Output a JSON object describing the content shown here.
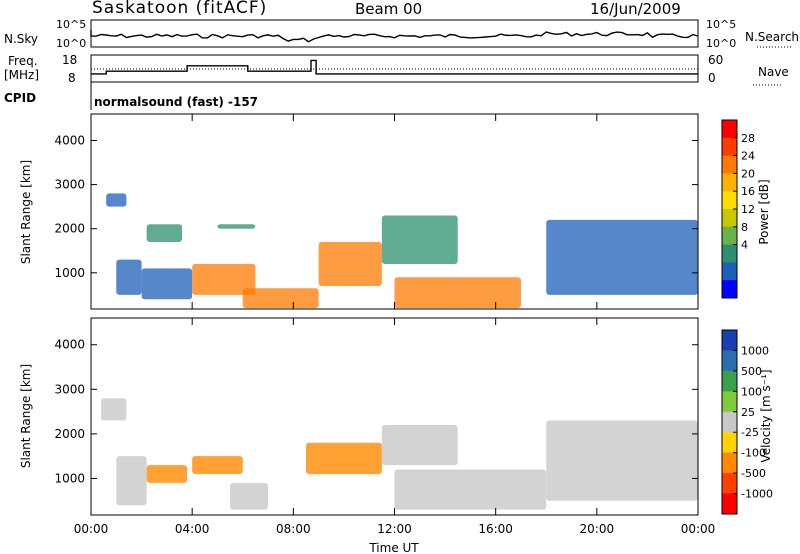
{
  "header": {
    "station": "Saskatoon (fitACF)",
    "beam": "Beam 00",
    "date": "16/Jun/2009"
  },
  "noise_panel": {
    "left_label": "N.Sky",
    "right_label": "N.Search",
    "left_ticks": [
      "10^5",
      "10^0"
    ],
    "right_ticks": [
      "10^5",
      "10^0"
    ]
  },
  "freq_panel": {
    "left_label_1": "Freq.",
    "left_label_2": "[MHz]",
    "right_label": "Nave",
    "left_ticks": [
      "18",
      "8"
    ],
    "right_ticks": [
      "60",
      "0"
    ]
  },
  "cpid_panel": {
    "label": "CPID",
    "text": "normalsound (fast) -157"
  },
  "power_panel": {
    "ylabel": "Slant Range [km]",
    "yticks": [
      "1000",
      "2000",
      "3000",
      "4000"
    ],
    "colorbar_label": "Power [dB]",
    "colorbar_ticks": [
      "28",
      "24",
      "20",
      "16",
      "12",
      "8",
      "4"
    ],
    "colorbar_colors": [
      "#ff0000",
      "#ff3c00",
      "#ff7a00",
      "#ffb300",
      "#ffdc00",
      "#c8c800",
      "#66b44a",
      "#2c8f6e",
      "#1d5fb8",
      "#0000ff"
    ]
  },
  "velocity_panel": {
    "ylabel": "Slant Range [km]",
    "yticks": [
      "1000",
      "2000",
      "3000",
      "4000"
    ],
    "colorbar_label": "Velocity [m s⁻¹]",
    "colorbar_ticks": [
      "1000",
      "500",
      "100",
      "25",
      "-25",
      "-100",
      "-500",
      "-1000"
    ],
    "colorbar_colors": [
      "#1a3fb0",
      "#2c6fb0",
      "#3aa04a",
      "#7fcc3a",
      "#c8c8c8",
      "#ffd200",
      "#ff8a00",
      "#ff4000",
      "#ff0000"
    ]
  },
  "x_axis": {
    "ticks": [
      "00:00",
      "04:00",
      "08:00",
      "12:00",
      "16:00",
      "20:00",
      "00:00"
    ],
    "label": "Time UT"
  },
  "chart_data": {
    "type": "heatmap",
    "x_range_hours": [
      0,
      24
    ],
    "y_range_km": [
      180,
      4600
    ],
    "power_echo_regions": [
      {
        "t0": 0.6,
        "t1": 1.4,
        "r0": 2500,
        "r1": 2800,
        "level": "low"
      },
      {
        "t0": 1.0,
        "t1": 2.0,
        "r0": 500,
        "r1": 1300,
        "level": "low"
      },
      {
        "t0": 2.2,
        "t1": 3.6,
        "r0": 1700,
        "r1": 2100,
        "level": "mid"
      },
      {
        "t0": 2.0,
        "t1": 4.0,
        "r0": 400,
        "r1": 1100,
        "level": "low"
      },
      {
        "t0": 4.0,
        "t1": 6.5,
        "r0": 500,
        "r1": 1200,
        "level": "high"
      },
      {
        "t0": 5.0,
        "t1": 6.5,
        "r0": 2000,
        "r1": 2100,
        "level": "mid"
      },
      {
        "t0": 6.0,
        "t1": 9.0,
        "r0": 200,
        "r1": 650,
        "level": "high"
      },
      {
        "t0": 9.0,
        "t1": 11.5,
        "r0": 700,
        "r1": 1700,
        "level": "high"
      },
      {
        "t0": 11.5,
        "t1": 14.5,
        "r0": 1200,
        "r1": 2300,
        "level": "mid"
      },
      {
        "t0": 12.0,
        "t1": 17.0,
        "r0": 200,
        "r1": 900,
        "level": "high"
      },
      {
        "t0": 18.0,
        "t1": 24.0,
        "r0": 500,
        "r1": 2200,
        "level": "low"
      }
    ],
    "velocity_echo_regions": [
      {
        "t0": 0.4,
        "t1": 1.4,
        "r0": 2300,
        "r1": 2800,
        "class": "-25..25"
      },
      {
        "t0": 1.0,
        "t1": 2.2,
        "r0": 400,
        "r1": 1500,
        "class": "-25..25"
      },
      {
        "t0": 2.2,
        "t1": 3.8,
        "r0": 900,
        "r1": 1300,
        "class": "-500..-100"
      },
      {
        "t0": 4.0,
        "t1": 6.0,
        "r0": 1100,
        "r1": 1500,
        "class": "-500..-100"
      },
      {
        "t0": 5.5,
        "t1": 7.0,
        "r0": 300,
        "r1": 900,
        "class": "-25..25"
      },
      {
        "t0": 8.5,
        "t1": 11.5,
        "r0": 1100,
        "r1": 1800,
        "class": "-500..-100"
      },
      {
        "t0": 11.5,
        "t1": 14.5,
        "r0": 1300,
        "r1": 2200,
        "class": "-25..25"
      },
      {
        "t0": 12.0,
        "t1": 18.0,
        "r0": 300,
        "r1": 1200,
        "class": "-25..25"
      },
      {
        "t0": 18.0,
        "t1": 24.0,
        "r0": 500,
        "r1": 2300,
        "class": "-25..25"
      }
    ],
    "freq_steps_mhz": [
      {
        "t0": 0.0,
        "t1": 0.6,
        "v": 11
      },
      {
        "t0": 0.6,
        "t1": 3.8,
        "v": 12
      },
      {
        "t0": 3.8,
        "t1": 6.2,
        "v": 14
      },
      {
        "t0": 6.2,
        "t1": 8.7,
        "v": 12
      },
      {
        "t0": 8.7,
        "t1": 8.9,
        "v": 16
      },
      {
        "t0": 8.9,
        "t1": 24.0,
        "v": 11
      }
    ]
  }
}
